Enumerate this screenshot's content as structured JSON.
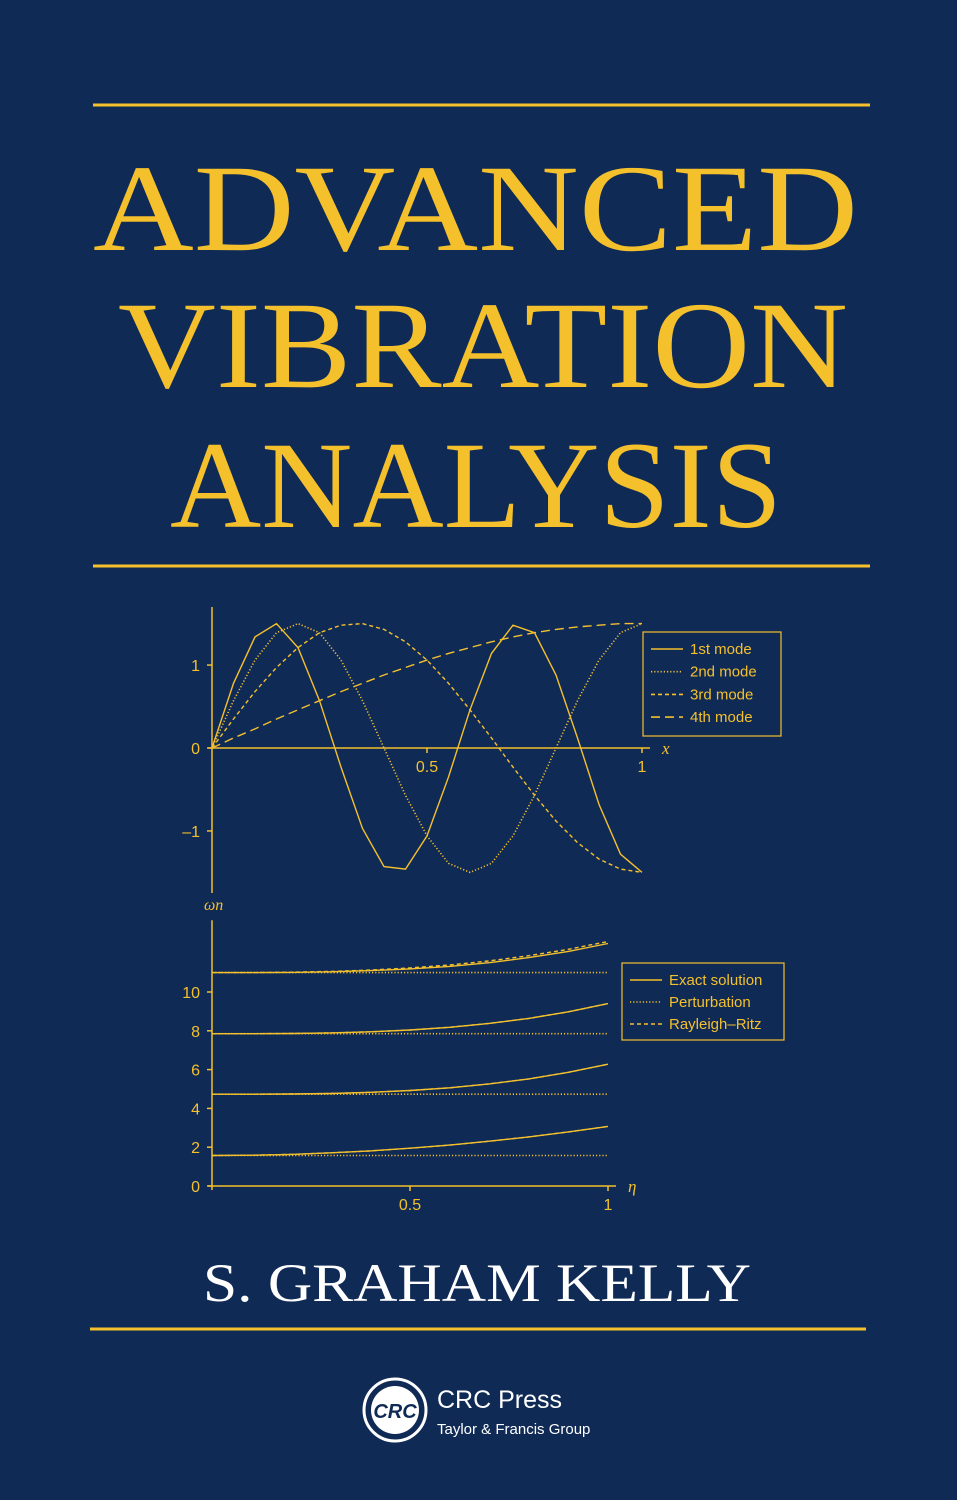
{
  "cover": {
    "title_lines": [
      "ADVANCED",
      "VIBRATION",
      "ANALYSIS"
    ],
    "author": "S. GRAHAM KELLY",
    "publisher": {
      "logo": "CRC",
      "name": "CRC Press",
      "group": "Taylor & Francis Group"
    }
  },
  "chart_data": [
    {
      "type": "line",
      "x": [
        0,
        0.05,
        0.1,
        0.15,
        0.2,
        0.25,
        0.3,
        0.35,
        0.4,
        0.45,
        0.5,
        0.55,
        0.6,
        0.65,
        0.7,
        0.75,
        0.8,
        0.85,
        0.9,
        0.95,
        1
      ],
      "xlim": [
        0,
        1
      ],
      "xticks": [
        0.5,
        1
      ],
      "xlabel": "x",
      "ylim": [
        -1.7,
        1.7
      ],
      "yticks": [
        {
          "value": -1,
          "label": "–1"
        },
        0,
        1
      ],
      "legend": "upper right",
      "series": [
        {
          "name": "1st mode",
          "color": "#f4c02c",
          "line_style": "solid",
          "values": [
            0,
            0.78,
            1.34,
            1.5,
            1.21,
            0.57,
            -0.23,
            -0.97,
            -1.43,
            -1.46,
            -1.06,
            -0.35,
            0.46,
            1.14,
            1.48,
            1.39,
            0.88,
            0.12,
            -0.68,
            -1.28,
            -1.5
          ]
        },
        {
          "name": "2nd mode",
          "color": "#f4c02c",
          "line_style": "dotted",
          "values": [
            0,
            0.57,
            1.06,
            1.39,
            1.5,
            1.39,
            1.06,
            0.57,
            0,
            -0.57,
            -1.06,
            -1.39,
            -1.5,
            -1.39,
            -1.06,
            -0.57,
            0,
            0.57,
            1.06,
            1.39,
            1.5
          ]
        },
        {
          "name": "3rd mode",
          "color": "#f4c02c",
          "line_style": "dashed",
          "values": [
            0,
            0.35,
            0.68,
            0.97,
            1.21,
            1.39,
            1.48,
            1.5,
            1.43,
            1.28,
            1.06,
            0.78,
            0.46,
            0.12,
            -0.23,
            -0.57,
            -0.88,
            -1.14,
            -1.34,
            -1.46,
            -1.5
          ]
        },
        {
          "name": "4th mode",
          "color": "#f4c02c",
          "line_style": "long-dashed",
          "values": [
            0,
            0.12,
            0.23,
            0.35,
            0.46,
            0.57,
            0.68,
            0.78,
            0.88,
            0.97,
            1.06,
            1.14,
            1.21,
            1.28,
            1.34,
            1.39,
            1.43,
            1.46,
            1.48,
            1.5,
            1.5
          ]
        }
      ]
    },
    {
      "type": "line",
      "x": [
        0,
        0.1,
        0.2,
        0.3,
        0.4,
        0.5,
        0.6,
        0.7,
        0.8,
        0.9,
        1
      ],
      "xlim": [
        0,
        1
      ],
      "xticks": [
        0.5,
        1
      ],
      "xlabel": "η",
      "ylabel": "ωn",
      "ylim": [
        0,
        13.7
      ],
      "yticks": [
        0,
        2,
        4,
        6,
        8,
        10
      ],
      "legend": "upper right",
      "series": [
        {
          "name": "Exact solution",
          "color": "#f4c02c",
          "line_style": "solid",
          "curves": [
            [
              1.57,
              1.59,
              1.63,
              1.71,
              1.81,
              1.95,
              2.11,
              2.31,
              2.53,
              2.79,
              3.07
            ],
            [
              4.73,
              4.73,
              4.74,
              4.77,
              4.83,
              4.92,
              5.06,
              5.26,
              5.52,
              5.86,
              6.28
            ],
            [
              7.85,
              7.85,
              7.86,
              7.89,
              7.95,
              8.04,
              8.18,
              8.38,
              8.64,
              8.98,
              9.4
            ],
            [
              11.0,
              11.0,
              11.01,
              11.04,
              11.1,
              11.19,
              11.32,
              11.51,
              11.77,
              12.09,
              12.5
            ]
          ]
        },
        {
          "name": "Perturbation",
          "color": "#f4c02c",
          "line_style": "dotted",
          "curves": [
            [
              1.57,
              1.57,
              1.57,
              1.57,
              1.57,
              1.57,
              1.57,
              1.57,
              1.57,
              1.57,
              1.57
            ],
            [
              4.73,
              4.73,
              4.73,
              4.73,
              4.73,
              4.73,
              4.73,
              4.73,
              4.73,
              4.73,
              4.73
            ],
            [
              7.85,
              7.85,
              7.85,
              7.85,
              7.85,
              7.85,
              7.85,
              7.85,
              7.85,
              7.85,
              7.85
            ],
            [
              11.0,
              11.0,
              11.0,
              11.0,
              11.0,
              11.0,
              11.0,
              11.0,
              11.0,
              11.0,
              11.0
            ]
          ]
        },
        {
          "name": "Rayleigh–Ritz",
          "color": "#f4c02c",
          "line_style": "dashed",
          "curves": [
            [
              1.57,
              1.59,
              1.63,
              1.71,
              1.81,
              1.95,
              2.11,
              2.31,
              2.53,
              2.79,
              3.07
            ],
            [
              4.73,
              4.73,
              4.74,
              4.77,
              4.83,
              4.92,
              5.06,
              5.26,
              5.52,
              5.86,
              6.28
            ],
            [
              7.85,
              7.85,
              7.86,
              7.89,
              7.95,
              8.04,
              8.18,
              8.38,
              8.64,
              8.98,
              9.4
            ],
            [
              11.0,
              11.0,
              11.02,
              11.06,
              11.13,
              11.24,
              11.39,
              11.6,
              11.87,
              12.2,
              12.6
            ]
          ]
        }
      ]
    }
  ]
}
